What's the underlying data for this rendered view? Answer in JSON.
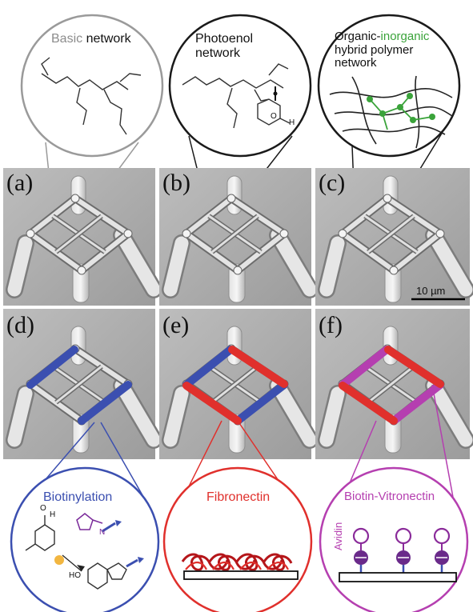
{
  "panels": {
    "a": "(a)",
    "b": "(b)",
    "c": "(c)",
    "d": "(d)",
    "e": "(e)",
    "f": "(f)"
  },
  "top": {
    "basic": {
      "word1": "Basic",
      "word2": "network"
    },
    "photoenol": {
      "line1": "Photoenol",
      "line2": "network"
    },
    "hybrid": {
      "line1a": "Organic-",
      "line1b": "inorganic",
      "line2": "hybrid polymer",
      "line3": "network"
    }
  },
  "bottom": {
    "biotinylation": {
      "title": "Biotinylation"
    },
    "fibronectin": {
      "title": "Fibronectin"
    },
    "vitronectin": {
      "title": "Biotin-Vitronectin",
      "avidin": "Avidin"
    }
  },
  "chem": {
    "aldehyde_H": "H",
    "aldehyde_O": "O",
    "ho": "HO",
    "ring_O1": "O",
    "ring_O2": "O",
    "n": "n",
    "N": "N",
    "O": "O"
  },
  "scale_bar": "10 µm",
  "colors": {
    "blue": "#3b4fb0",
    "red": "#e0302c",
    "magenta": "#b53fb0",
    "green": "#3aa33a",
    "gray_text": "#8c8c8c"
  }
}
